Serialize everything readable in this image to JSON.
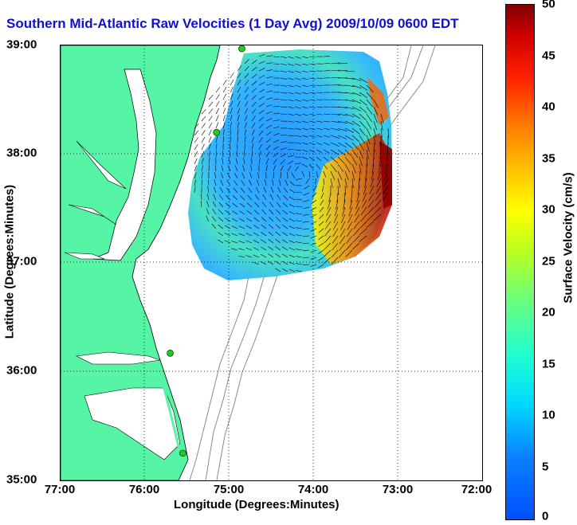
{
  "title": "Southern Mid-Atlantic Raw Velocities (1 Day Avg) 2009/10/09 0600 EDT",
  "x_axis": {
    "label": "Longitude (Degrees:Minutes)",
    "ticks": [
      "77:00",
      "76:00",
      "75:00",
      "74:00",
      "73:00",
      "72:00"
    ]
  },
  "y_axis": {
    "label": "Latitude (Degrees:Minutes)",
    "ticks": [
      "39:00",
      "38:00",
      "37:00",
      "36:00",
      "35:00"
    ]
  },
  "colorbar": {
    "label": "Surface Velocity (cm/s)",
    "ticks": [
      "50",
      "45",
      "40",
      "35",
      "30",
      "25",
      "20",
      "15",
      "10",
      "5",
      "0"
    ],
    "min": 0,
    "max": 50
  },
  "colors": {
    "land": "#55f5a5",
    "water": "#ffffff",
    "title": "#1010d0",
    "station": "#22cc22"
  },
  "stations": [
    {
      "lon": -74.85,
      "lat": 38.97
    },
    {
      "lon": -75.15,
      "lat": 38.2
    },
    {
      "lon": -75.7,
      "lat": 36.17
    },
    {
      "lon": -75.55,
      "lat": 35.25
    }
  ]
}
